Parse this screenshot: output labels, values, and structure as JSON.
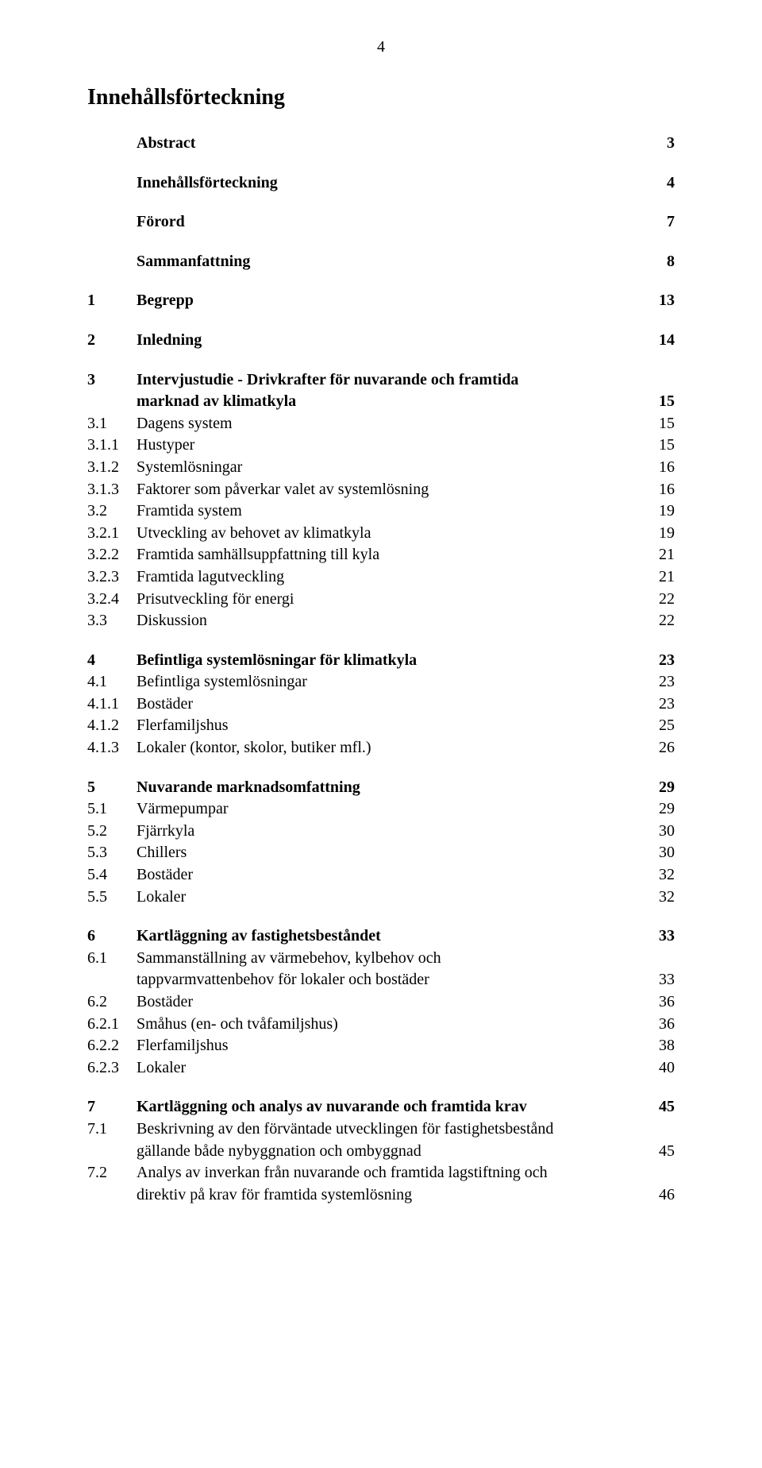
{
  "page_number": "4",
  "doc_title": "Innehållsförteckning",
  "font_family": "Times New Roman",
  "text_color": "#000000",
  "background_color": "#ffffff",
  "toc": [
    {
      "type": "entry",
      "bold": true,
      "num": "",
      "label": "Abstract",
      "page": "3"
    },
    {
      "type": "gap"
    },
    {
      "type": "entry",
      "bold": true,
      "num": "",
      "label": "Innehållsförteckning",
      "page": "4"
    },
    {
      "type": "gap"
    },
    {
      "type": "entry",
      "bold": true,
      "num": "",
      "label": "Förord",
      "page": "7"
    },
    {
      "type": "gap"
    },
    {
      "type": "entry",
      "bold": true,
      "num": "",
      "label": "Sammanfattning",
      "page": "8"
    },
    {
      "type": "gap"
    },
    {
      "type": "entry",
      "bold": true,
      "num": "1",
      "label": "Begrepp",
      "page": "13"
    },
    {
      "type": "gap"
    },
    {
      "type": "entry",
      "bold": true,
      "num": "2",
      "label": "Inledning",
      "page": "14"
    },
    {
      "type": "gap"
    },
    {
      "type": "entry",
      "bold": true,
      "num": "3",
      "label": "Intervjustudie - Drivkrafter för nuvarande och framtida",
      "page": ""
    },
    {
      "type": "entry",
      "bold": true,
      "num": "",
      "label": "marknad av klimatkyla",
      "page": "15"
    },
    {
      "type": "entry",
      "bold": false,
      "num": "3.1",
      "label": "Dagens system",
      "page": "15"
    },
    {
      "type": "entry",
      "bold": false,
      "num": "3.1.1",
      "label": "Hustyper",
      "page": "15"
    },
    {
      "type": "entry",
      "bold": false,
      "num": "3.1.2",
      "label": "Systemlösningar",
      "page": "16"
    },
    {
      "type": "entry",
      "bold": false,
      "num": "3.1.3",
      "label": "Faktorer som påverkar valet av systemlösning",
      "page": "16"
    },
    {
      "type": "entry",
      "bold": false,
      "num": "3.2",
      "label": "Framtida system",
      "page": "19"
    },
    {
      "type": "entry",
      "bold": false,
      "num": "3.2.1",
      "label": "Utveckling av behovet av klimatkyla",
      "page": "19"
    },
    {
      "type": "entry",
      "bold": false,
      "num": "3.2.2",
      "label": "Framtida samhällsuppfattning till kyla",
      "page": "21"
    },
    {
      "type": "entry",
      "bold": false,
      "num": "3.2.3",
      "label": "Framtida lagutveckling",
      "page": "21"
    },
    {
      "type": "entry",
      "bold": false,
      "num": "3.2.4",
      "label": "Prisutveckling för energi",
      "page": "22"
    },
    {
      "type": "entry",
      "bold": false,
      "num": "3.3",
      "label": "Diskussion",
      "page": "22"
    },
    {
      "type": "gap"
    },
    {
      "type": "entry",
      "bold": true,
      "num": "4",
      "label": "Befintliga systemlösningar för klimatkyla",
      "page": "23"
    },
    {
      "type": "entry",
      "bold": false,
      "num": "4.1",
      "label": "Befintliga systemlösningar",
      "page": "23"
    },
    {
      "type": "entry",
      "bold": false,
      "num": "4.1.1",
      "label": "Bostäder",
      "page": "23"
    },
    {
      "type": "entry",
      "bold": false,
      "num": "4.1.2",
      "label": "Flerfamiljshus",
      "page": "25"
    },
    {
      "type": "entry",
      "bold": false,
      "num": "4.1.3",
      "label": "Lokaler (kontor, skolor, butiker mfl.)",
      "page": "26"
    },
    {
      "type": "gap"
    },
    {
      "type": "entry",
      "bold": true,
      "num": "5",
      "label": "Nuvarande marknadsomfattning",
      "page": "29"
    },
    {
      "type": "entry",
      "bold": false,
      "num": "5.1",
      "label": "Värmepumpar",
      "page": "29"
    },
    {
      "type": "entry",
      "bold": false,
      "num": "5.2",
      "label": "Fjärrkyla",
      "page": "30"
    },
    {
      "type": "entry",
      "bold": false,
      "num": "5.3",
      "label": "Chillers",
      "page": "30"
    },
    {
      "type": "entry",
      "bold": false,
      "num": "5.4",
      "label": "Bostäder",
      "page": "32"
    },
    {
      "type": "entry",
      "bold": false,
      "num": "5.5",
      "label": "Lokaler",
      "page": "32"
    },
    {
      "type": "gap"
    },
    {
      "type": "entry",
      "bold": true,
      "num": "6",
      "label": "Kartläggning av fastighetsbeståndet",
      "page": "33"
    },
    {
      "type": "entry",
      "bold": false,
      "num": "6.1",
      "label": "Sammanställning av värmebehov, kylbehov och",
      "page": ""
    },
    {
      "type": "entry",
      "bold": false,
      "num": "",
      "label": "tappvarmvattenbehov för lokaler och bostäder",
      "page": "33"
    },
    {
      "type": "entry",
      "bold": false,
      "num": "6.2",
      "label": "Bostäder",
      "page": "36"
    },
    {
      "type": "entry",
      "bold": false,
      "num": "6.2.1",
      "label": "Småhus (en- och tvåfamiljshus)",
      "page": "36"
    },
    {
      "type": "entry",
      "bold": false,
      "num": "6.2.2",
      "label": "Flerfamiljshus",
      "page": "38"
    },
    {
      "type": "entry",
      "bold": false,
      "num": "6.2.3",
      "label": "Lokaler",
      "page": "40"
    },
    {
      "type": "gap"
    },
    {
      "type": "entry",
      "bold": true,
      "num": "7",
      "label": "Kartläggning och analys av nuvarande och framtida krav",
      "page": "45"
    },
    {
      "type": "entry",
      "bold": false,
      "num": "7.1",
      "label": "Beskrivning av den förväntade utvecklingen för fastighetsbestånd",
      "page": ""
    },
    {
      "type": "entry",
      "bold": false,
      "num": "",
      "label": "gällande både nybyggnation och ombyggnad",
      "page": "45"
    },
    {
      "type": "entry",
      "bold": false,
      "num": "7.2",
      "label": "Analys av inverkan från nuvarande och framtida lagstiftning och",
      "page": ""
    },
    {
      "type": "entry",
      "bold": false,
      "num": "",
      "label": "direktiv på krav för framtida systemlösning",
      "page": "46"
    }
  ]
}
